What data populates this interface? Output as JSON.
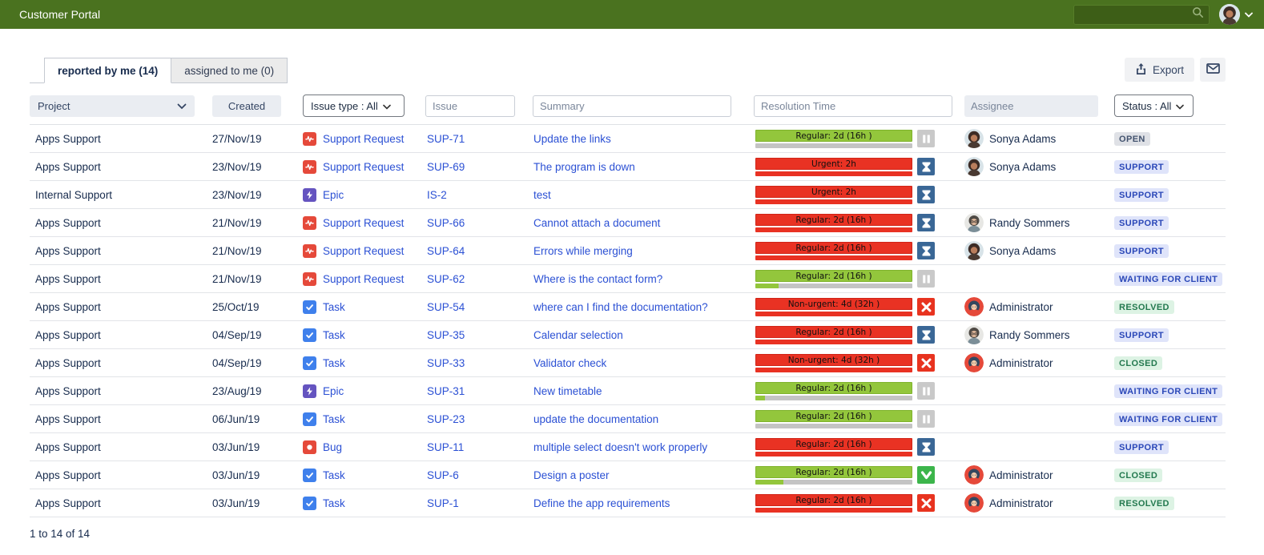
{
  "topbar": {
    "title": "Customer Portal",
    "search": {
      "value": "",
      "placeholder": ""
    },
    "user_menu_icons": [
      "search-icon",
      "user-avatar",
      "chevron-down-icon"
    ]
  },
  "tabs": [
    {
      "label": "reported by me (14)",
      "active": true
    },
    {
      "label": "assigned to me (0)",
      "active": false
    }
  ],
  "toolbar": {
    "export_label": "Export",
    "icons": [
      "export-icon",
      "mail-icon"
    ]
  },
  "filters": {
    "project_label": "Project",
    "created_label": "Created",
    "issue_type_label": "Issue type : All",
    "issue_placeholder": "Issue",
    "summary_placeholder": "Summary",
    "resolution_placeholder": "Resolution Time",
    "assignee_placeholder": "Assignee",
    "status_label": "Status : All"
  },
  "colors": {
    "topbar_green": "#4a721f",
    "link_blue": "#2b50d4",
    "sla_green": "#93c63c",
    "sla_red": "#e93223",
    "badge_gray_bg": "#dfe1e6",
    "badge_blue_bg": "#dfe4fa",
    "badge_green_bg": "#ddf3e4",
    "icon_support": "#e5493a",
    "icon_task": "#3f80ec",
    "icon_epic": "#6554c0",
    "icon_bug": "#e5493a"
  },
  "table": {
    "rows": [
      {
        "project": "Apps Support",
        "created": "27/Nov/19",
        "type": "Support Request",
        "type_icon": "support-request-icon",
        "key": "SUP-71",
        "summary": "Update the links",
        "sla": {
          "label": "Regular: 2d (16h )",
          "color": "green",
          "progress": 0,
          "icon": "pause-icon"
        },
        "assignee": "Sonya Adams",
        "avatar": "sonya",
        "status": "OPEN",
        "status_color": "gray"
      },
      {
        "project": "Apps Support",
        "created": "23/Nov/19",
        "type": "Support Request",
        "type_icon": "support-request-icon",
        "key": "SUP-69",
        "summary": "The program is down",
        "sla": {
          "label": "Urgent: 2h",
          "color": "red",
          "progress": 100,
          "icon": "hourglass-icon"
        },
        "assignee": "Sonya Adams",
        "avatar": "sonya",
        "status": "SUPPORT",
        "status_color": "blue"
      },
      {
        "project": "Internal Support",
        "created": "23/Nov/19",
        "type": "Epic",
        "type_icon": "epic-icon",
        "key": "IS-2",
        "summary": "test",
        "sla": {
          "label": "Urgent: 2h",
          "color": "red",
          "progress": 100,
          "icon": "hourglass-icon"
        },
        "assignee": "",
        "avatar": "",
        "status": "SUPPORT",
        "status_color": "blue"
      },
      {
        "project": "Apps Support",
        "created": "21/Nov/19",
        "type": "Support Request",
        "type_icon": "support-request-icon",
        "key": "SUP-66",
        "summary": "Cannot attach a document",
        "sla": {
          "label": "Regular: 2d (16h )",
          "color": "red",
          "progress": 100,
          "icon": "hourglass-icon"
        },
        "assignee": "Randy Sommers",
        "avatar": "randy",
        "status": "SUPPORT",
        "status_color": "blue"
      },
      {
        "project": "Apps Support",
        "created": "21/Nov/19",
        "type": "Support Request",
        "type_icon": "support-request-icon",
        "key": "SUP-64",
        "summary": "Errors while merging",
        "sla": {
          "label": "Regular: 2d (16h )",
          "color": "red",
          "progress": 100,
          "icon": "hourglass-icon"
        },
        "assignee": "Sonya Adams",
        "avatar": "sonya",
        "status": "SUPPORT",
        "status_color": "blue"
      },
      {
        "project": "Apps Support",
        "created": "21/Nov/19",
        "type": "Support Request",
        "type_icon": "support-request-icon",
        "key": "SUP-62",
        "summary": "Where is the contact form?",
        "sla": {
          "label": "Regular: 2d (16h )",
          "color": "green",
          "progress": 15,
          "icon": "pause-icon"
        },
        "assignee": "",
        "avatar": "",
        "status": "WAITING FOR CLIENT",
        "status_color": "blue"
      },
      {
        "project": "Apps Support",
        "created": "25/Oct/19",
        "type": "Task",
        "type_icon": "task-icon",
        "key": "SUP-54",
        "summary": "where can I find the documentation?",
        "sla": {
          "label": "Non-urgent: 4d (32h )",
          "color": "red",
          "progress": 100,
          "icon": "fail-icon"
        },
        "assignee": "Administrator",
        "avatar": "admin",
        "status": "RESOLVED",
        "status_color": "green"
      },
      {
        "project": "Apps Support",
        "created": "04/Sep/19",
        "type": "Task",
        "type_icon": "task-icon",
        "key": "SUP-35",
        "summary": "Calendar selection",
        "sla": {
          "label": "Regular: 2d (16h )",
          "color": "red",
          "progress": 100,
          "icon": "hourglass-icon"
        },
        "assignee": "Randy Sommers",
        "avatar": "randy",
        "status": "SUPPORT",
        "status_color": "blue"
      },
      {
        "project": "Apps Support",
        "created": "04/Sep/19",
        "type": "Task",
        "type_icon": "task-icon",
        "key": "SUP-33",
        "summary": "Validator check",
        "sla": {
          "label": "Non-urgent: 4d (32h )",
          "color": "red",
          "progress": 100,
          "icon": "fail-icon"
        },
        "assignee": "Administrator",
        "avatar": "admin",
        "status": "CLOSED",
        "status_color": "green"
      },
      {
        "project": "Apps Support",
        "created": "23/Aug/19",
        "type": "Epic",
        "type_icon": "epic-icon",
        "key": "SUP-31",
        "summary": "New timetable",
        "sla": {
          "label": "Regular: 2d (16h )",
          "color": "green",
          "progress": 6,
          "icon": "pause-icon"
        },
        "assignee": "",
        "avatar": "",
        "status": "WAITING FOR CLIENT",
        "status_color": "blue"
      },
      {
        "project": "Apps Support",
        "created": "06/Jun/19",
        "type": "Task",
        "type_icon": "task-icon",
        "key": "SUP-23",
        "summary": "update the documentation",
        "sla": {
          "label": "Regular: 2d (16h )",
          "color": "green",
          "progress": 0,
          "icon": "pause-icon"
        },
        "assignee": "",
        "avatar": "",
        "status": "WAITING FOR CLIENT",
        "status_color": "blue"
      },
      {
        "project": "Apps Support",
        "created": "03/Jun/19",
        "type": "Bug",
        "type_icon": "bug-icon",
        "key": "SUP-11",
        "summary": "multiple select doesn't work properly",
        "sla": {
          "label": "Regular: 2d (16h )",
          "color": "red",
          "progress": 100,
          "icon": "hourglass-icon"
        },
        "assignee": "",
        "avatar": "",
        "status": "SUPPORT",
        "status_color": "blue"
      },
      {
        "project": "Apps Support",
        "created": "03/Jun/19",
        "type": "Task",
        "type_icon": "task-icon",
        "key": "SUP-6",
        "summary": "Design a poster",
        "sla": {
          "label": "Regular: 2d (16h )",
          "color": "green",
          "progress": 18,
          "icon": "success-icon"
        },
        "assignee": "Administrator",
        "avatar": "admin",
        "status": "CLOSED",
        "status_color": "green"
      },
      {
        "project": "Apps Support",
        "created": "03/Jun/19",
        "type": "Task",
        "type_icon": "task-icon",
        "key": "SUP-1",
        "summary": "Define the app requirements",
        "sla": {
          "label": "Regular: 2d (16h )",
          "color": "red",
          "progress": 100,
          "icon": "fail-icon"
        },
        "assignee": "Administrator",
        "avatar": "admin",
        "status": "RESOLVED",
        "status_color": "green"
      }
    ]
  },
  "footer": {
    "count_text": "1 to 14 of 14"
  }
}
